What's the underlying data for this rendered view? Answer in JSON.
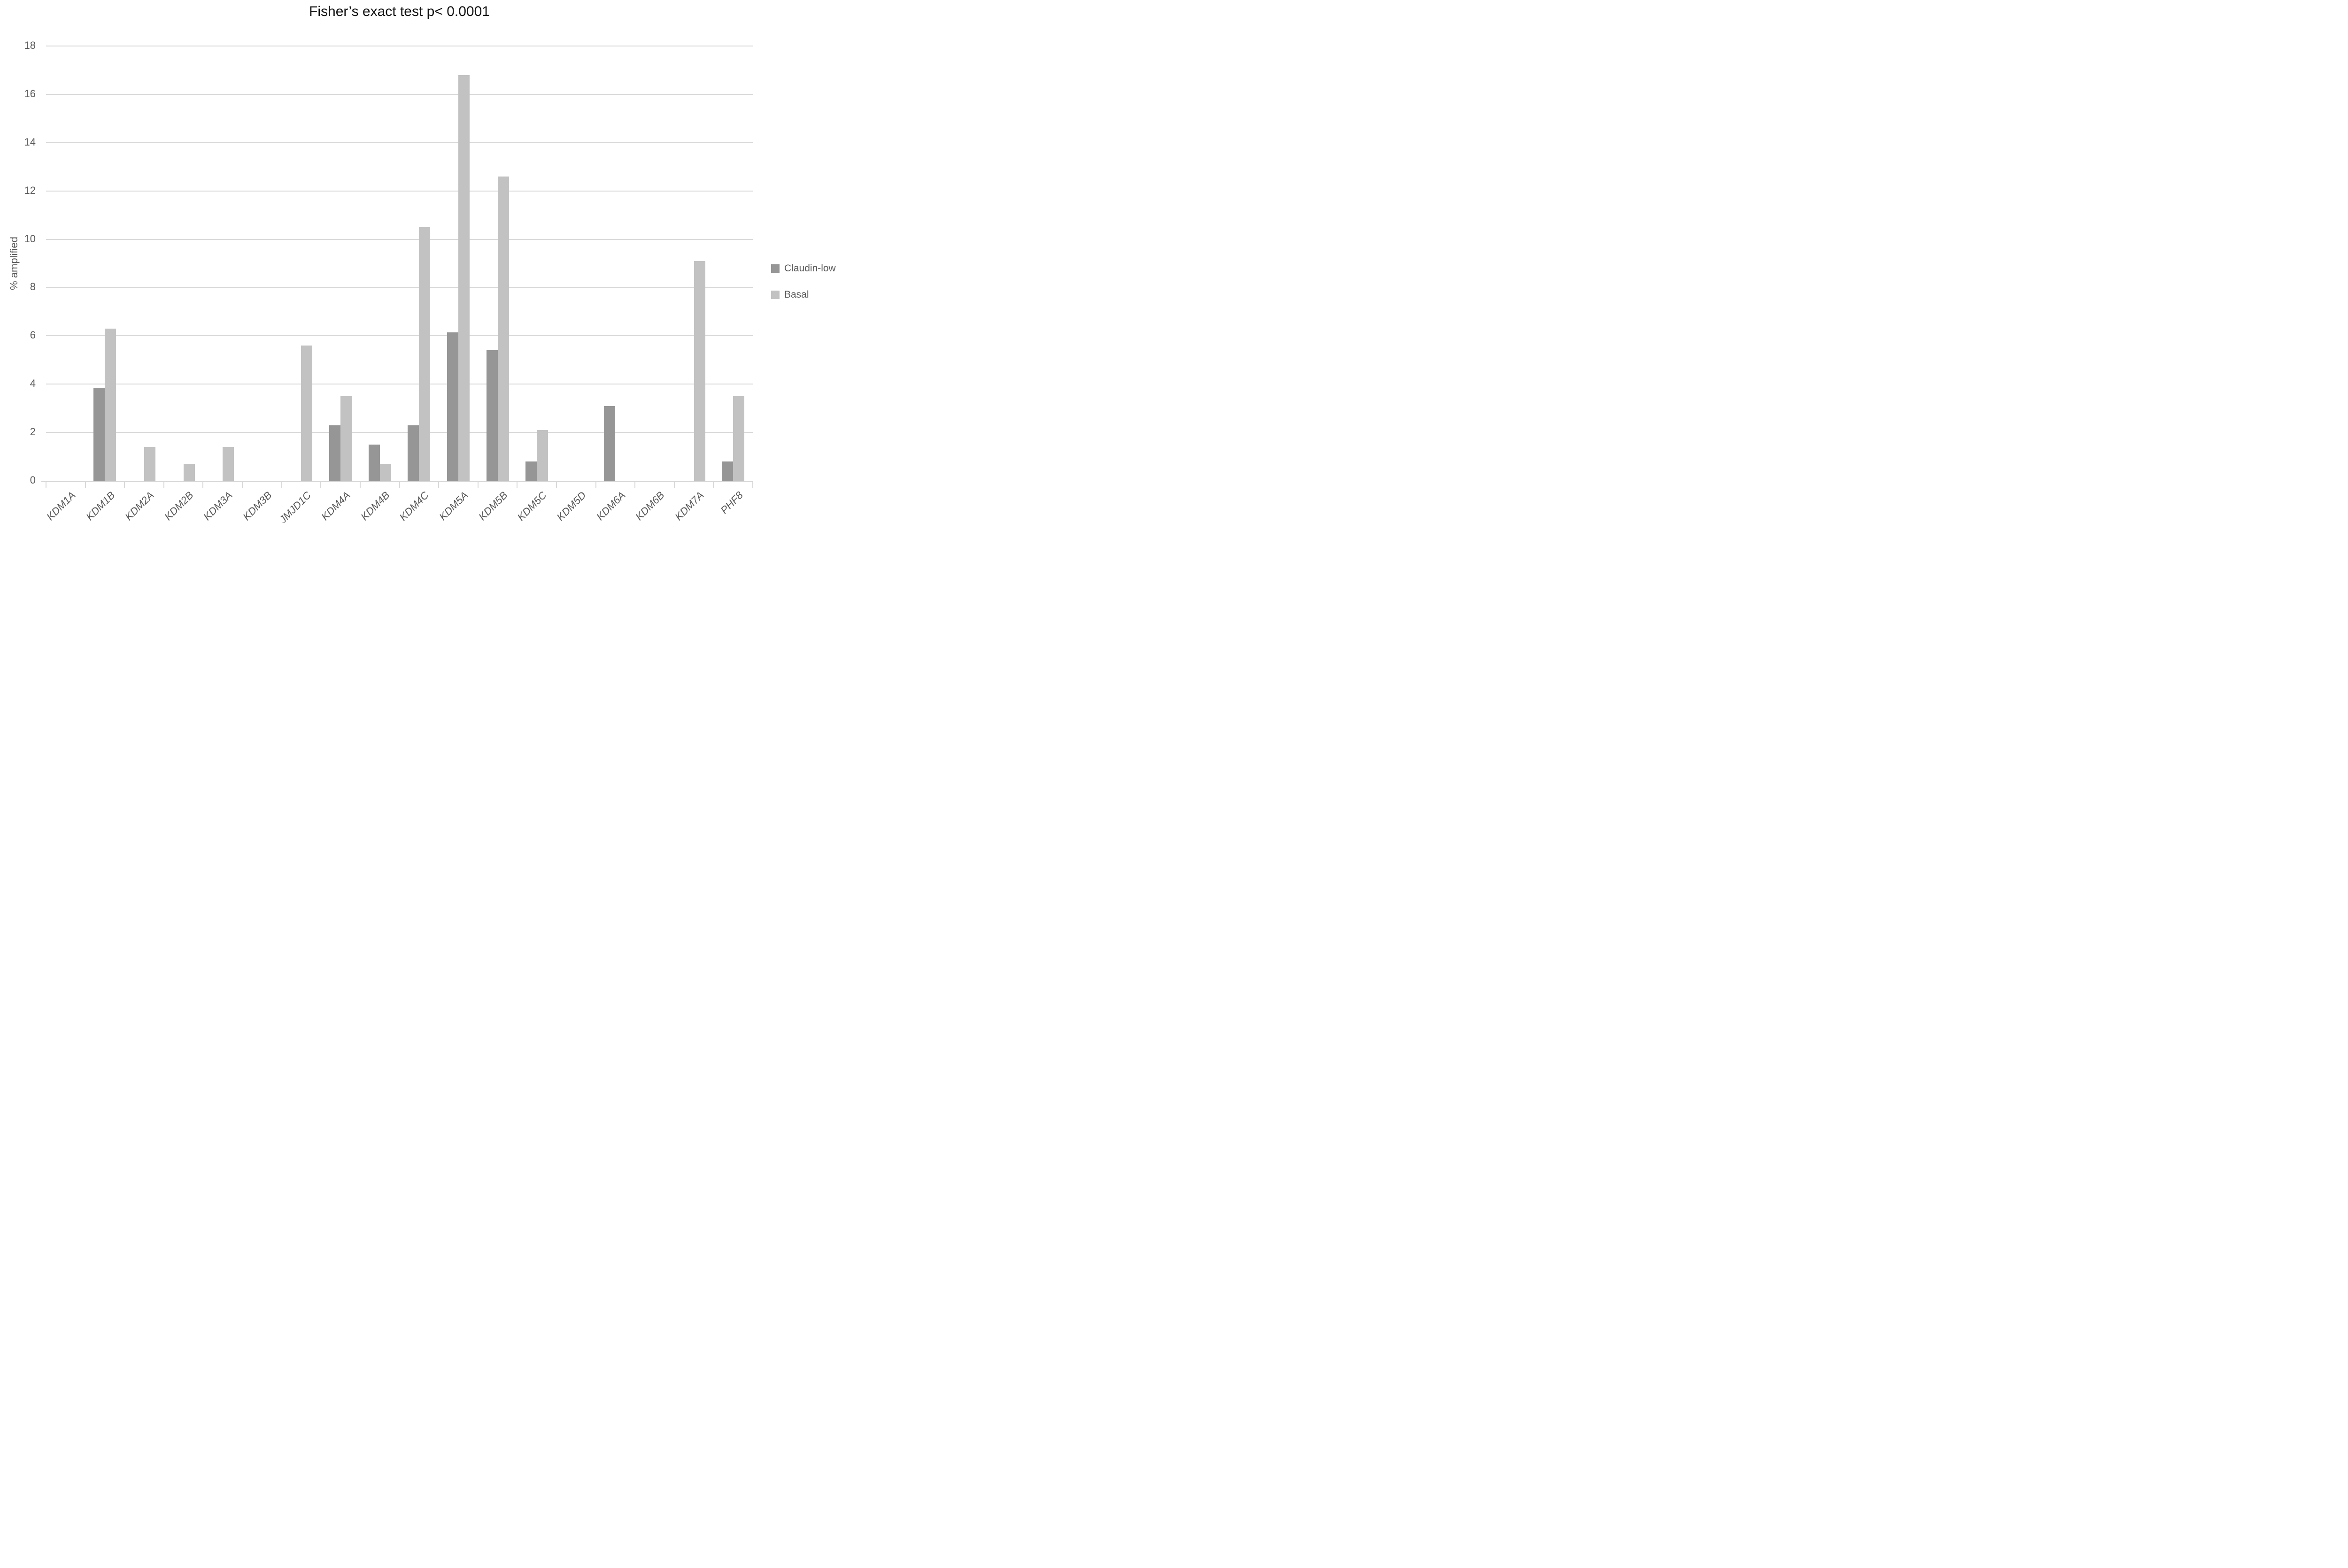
{
  "chart_data": {
    "type": "bar",
    "title": "Fisher’s exact test p< 0.0001",
    "ylabel": "% amplified",
    "xlabel": "",
    "ylim": [
      0,
      18
    ],
    "yticks": [
      0,
      2,
      4,
      6,
      8,
      10,
      12,
      14,
      16,
      18
    ],
    "grid": true,
    "legend_position": "right",
    "categories": [
      "KDM1A",
      "KDM1B",
      "KDM2A",
      "KDM2B",
      "KDM3A",
      "KDM3B",
      "JMJD1C",
      "KDM4A",
      "KDM4B",
      "KDM4C",
      "KDM5A",
      "KDM5B",
      "KDM5C",
      "KDM5D",
      "KDM6A",
      "KDM6B",
      "KDM7A",
      "PHF8"
    ],
    "series": [
      {
        "name": "Claudin-low",
        "color": "#969696",
        "values": [
          0,
          3.85,
          0,
          0,
          0,
          0,
          0,
          2.3,
          1.5,
          2.3,
          6.15,
          5.4,
          0.8,
          0,
          3.1,
          0,
          0,
          0.8
        ]
      },
      {
        "name": "Basal",
        "color": "#c2c2c2",
        "values": [
          0,
          6.3,
          1.4,
          0.7,
          1.4,
          0,
          5.6,
          3.5,
          0.7,
          10.5,
          16.8,
          12.6,
          2.1,
          0,
          0,
          0,
          9.1,
          3.5
        ]
      }
    ]
  },
  "colors": {
    "gridline": "#d9d9d9",
    "axis_line": "#d6d6d6",
    "tick": "#d9d9d9",
    "label_text": "#595959",
    "title_text": "#111111",
    "background": "#ffffff"
  }
}
